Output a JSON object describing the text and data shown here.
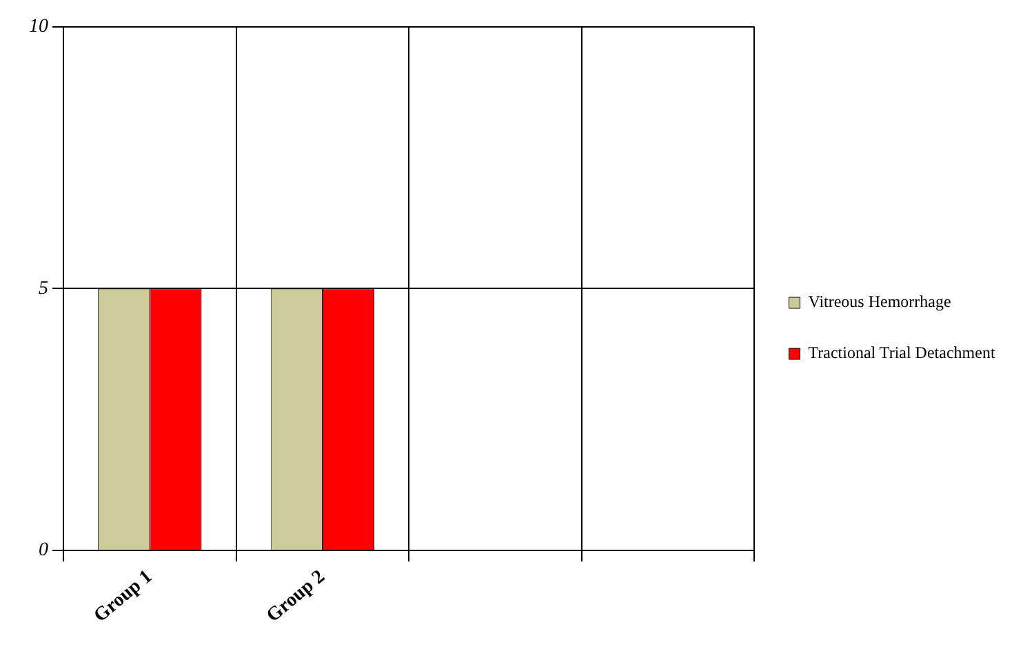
{
  "chart_data": {
    "type": "bar",
    "categories": [
      "Group 1",
      "Group 2",
      null,
      null
    ],
    "series": [
      {
        "name": "Vitreous Hemorrhage",
        "color": "#cccc99",
        "values": [
          5,
          5,
          null,
          null
        ]
      },
      {
        "name": "Tractional Trial Detachment",
        "color": "#ff0000",
        "values": [
          5,
          5,
          null,
          null
        ]
      }
    ],
    "ylim": [
      0,
      10
    ],
    "yticks": [
      0,
      5,
      10
    ],
    "grid": true,
    "legend": "right"
  }
}
